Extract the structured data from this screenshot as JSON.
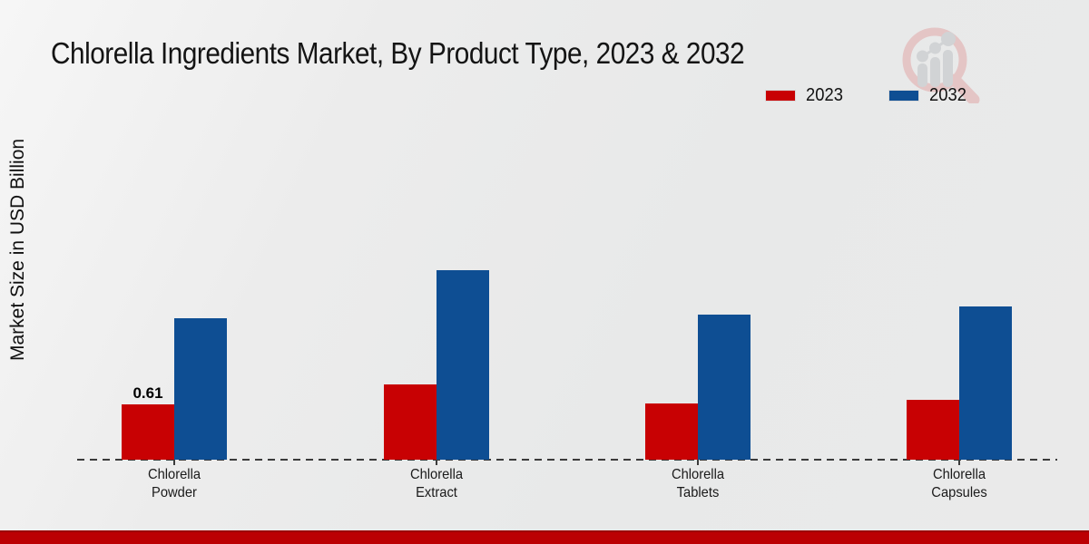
{
  "chart_data": {
    "type": "bar",
    "title": "Chlorella Ingredients Market, By Product Type, 2023 & 2032",
    "xlabel": "",
    "ylabel": "Market Size in USD Billion",
    "categories": [
      "Chlorella Powder",
      "Chlorella Extract",
      "Chlorella Tablets",
      "Chlorella Capsules"
    ],
    "series": [
      {
        "name": "2023",
        "color": "#c80103",
        "values": [
          0.61,
          0.83,
          0.62,
          0.66
        ],
        "labels": [
          "0.61",
          "",
          "",
          ""
        ]
      },
      {
        "name": "2032",
        "color": "#0e4e93",
        "values": [
          1.56,
          2.09,
          1.6,
          1.69
        ],
        "labels": [
          "",
          "",
          "",
          ""
        ]
      }
    ],
    "ylim": [
      0,
      2.6
    ],
    "grid": false,
    "legend_position": "top-right",
    "baseline_style": "dashed"
  },
  "watermark": {
    "icon": "magnifier-bar-chart-logo"
  },
  "footer": {
    "accent_color": "#bb0003"
  }
}
